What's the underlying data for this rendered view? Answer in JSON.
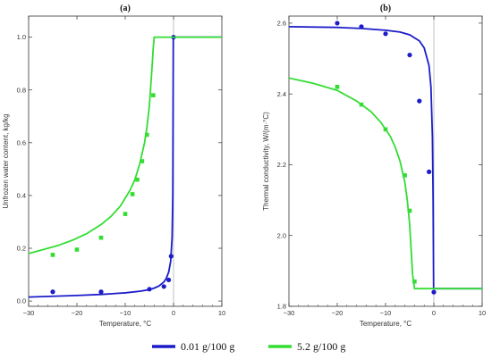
{
  "colors": {
    "blue": "#1c1cc9",
    "green": "#33dd33",
    "frame": "#333333",
    "zero_line": "#999999"
  },
  "legend": [
    {
      "label": "0.01 g/100 g",
      "color": "#1c1cc9"
    },
    {
      "label": "5.2 g/100 g",
      "color": "#33dd33"
    }
  ],
  "chart_data": [
    {
      "panel": "(a)",
      "type": "scatter",
      "title": "(a)",
      "xlabel": "Temperature, °C",
      "ylabel": "Unfrozen water content, kg/kg",
      "xlim": [
        -30,
        10
      ],
      "ylim": [
        -0.02,
        1.08
      ],
      "xticks": [
        -30,
        -20,
        -10,
        0,
        10
      ],
      "yticks": [
        0.0,
        0.2,
        0.4,
        0.6,
        0.8,
        1.0
      ],
      "ytick_labels": [
        "0.0",
        "0.2",
        "0.4",
        "0.6",
        "0.8",
        "1.0"
      ],
      "grid": false,
      "series": [
        {
          "name": "0.01 g/100 g",
          "color": "#1c1cc9",
          "marker": "circle",
          "points": [
            [
              -25,
              0.035
            ],
            [
              -15,
              0.035
            ],
            [
              -5,
              0.045
            ],
            [
              -2,
              0.055
            ],
            [
              -1,
              0.08
            ],
            [
              -0.5,
              0.17
            ],
            [
              0,
              1.0
            ]
          ],
          "curve": [
            [
              -30,
              0.015
            ],
            [
              -25,
              0.018
            ],
            [
              -20,
              0.021
            ],
            [
              -15,
              0.025
            ],
            [
              -10,
              0.031
            ],
            [
              -7,
              0.037
            ],
            [
              -5,
              0.043
            ],
            [
              -4,
              0.049
            ],
            [
              -3,
              0.057
            ],
            [
              -2,
              0.072
            ],
            [
              -1.5,
              0.086
            ],
            [
              -1,
              0.11
            ],
            [
              -0.6,
              0.15
            ],
            [
              -0.3,
              0.24
            ],
            [
              -0.15,
              0.4
            ],
            [
              -0.05,
              1.0
            ],
            [
              10,
              1.0
            ]
          ]
        },
        {
          "name": "5.2 g/100 g",
          "color": "#33dd33",
          "marker": "square",
          "points": [
            [
              -25,
              0.175
            ],
            [
              -20,
              0.195
            ],
            [
              -15,
              0.24
            ],
            [
              -10,
              0.33
            ],
            [
              -8.5,
              0.405
            ],
            [
              -7.5,
              0.46
            ],
            [
              -6.5,
              0.53
            ],
            [
              -5.5,
              0.63
            ],
            [
              -4.2,
              0.78
            ]
          ],
          "curve": [
            [
              -30,
              0.18
            ],
            [
              -27,
              0.195
            ],
            [
              -24,
              0.21
            ],
            [
              -21,
              0.23
            ],
            [
              -18,
              0.255
            ],
            [
              -15,
              0.29
            ],
            [
              -13,
              0.32
            ],
            [
              -11,
              0.36
            ],
            [
              -9,
              0.42
            ],
            [
              -8,
              0.46
            ],
            [
              -7,
              0.52
            ],
            [
              -6,
              0.6
            ],
            [
              -5.5,
              0.66
            ],
            [
              -5,
              0.74
            ],
            [
              -4.7,
              0.82
            ],
            [
              -4.4,
              0.9
            ],
            [
              -4.2,
              0.96
            ],
            [
              -4,
              1.0
            ],
            [
              10,
              1.0
            ]
          ]
        }
      ]
    },
    {
      "panel": "(b)",
      "type": "scatter",
      "title": "(b)",
      "xlabel": "Temperature, °C",
      "ylabel": "Thermal conductivity, W/(m·°C)",
      "xlim": [
        -30,
        10
      ],
      "ylim": [
        1.8,
        2.62
      ],
      "xticks": [
        -30,
        -20,
        -10,
        0,
        10
      ],
      "yticks": [
        1.8,
        2.0,
        2.2,
        2.4,
        2.6
      ],
      "ytick_labels": [
        "1.8",
        "2.0",
        "2.2",
        "2.4",
        "2.6"
      ],
      "grid": false,
      "series": [
        {
          "name": "0.01 g/100 g",
          "color": "#1c1cc9",
          "marker": "circle",
          "points": [
            [
              -20,
              2.6
            ],
            [
              -15,
              2.59
            ],
            [
              -10,
              2.57
            ],
            [
              -5,
              2.51
            ],
            [
              -3,
              2.38
            ],
            [
              -1,
              2.18
            ],
            [
              0,
              1.84
            ]
          ],
          "curve": [
            [
              -30,
              2.59
            ],
            [
              -20,
              2.588
            ],
            [
              -15,
              2.585
            ],
            [
              -10,
              2.58
            ],
            [
              -7,
              2.575
            ],
            [
              -5,
              2.567
            ],
            [
              -3,
              2.55
            ],
            [
              -2,
              2.53
            ],
            [
              -1,
              2.48
            ],
            [
              -0.6,
              2.42
            ],
            [
              -0.3,
              2.28
            ],
            [
              -0.15,
              2.1
            ],
            [
              -0.05,
              1.85
            ],
            [
              0,
              1.85
            ],
            [
              10,
              1.85
            ]
          ]
        },
        {
          "name": "5.2 g/100 g",
          "color": "#33dd33",
          "marker": "square",
          "points": [
            [
              -20,
              2.42
            ],
            [
              -15,
              2.37
            ],
            [
              -10,
              2.3
            ],
            [
              -6,
              2.17
            ],
            [
              -5,
              2.07
            ],
            [
              -4,
              1.87
            ]
          ],
          "curve": [
            [
              -30,
              2.445
            ],
            [
              -25,
              2.43
            ],
            [
              -20,
              2.41
            ],
            [
              -16,
              2.38
            ],
            [
              -13,
              2.35
            ],
            [
              -11,
              2.32
            ],
            [
              -9,
              2.28
            ],
            [
              -8,
              2.25
            ],
            [
              -7,
              2.21
            ],
            [
              -6,
              2.15
            ],
            [
              -5.5,
              2.1
            ],
            [
              -5,
              2.03
            ],
            [
              -4.7,
              1.96
            ],
            [
              -4.4,
              1.89
            ],
            [
              -4.1,
              1.86
            ],
            [
              -4,
              1.85
            ],
            [
              10,
              1.85
            ]
          ]
        }
      ]
    }
  ]
}
